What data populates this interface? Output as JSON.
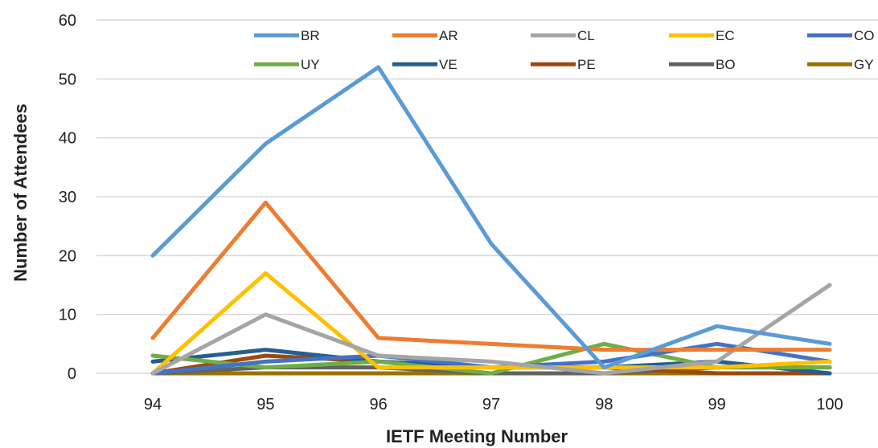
{
  "chart_data": {
    "type": "line",
    "title": "",
    "xlabel": "IETF Meeting Number",
    "ylabel": "Number of Attendees",
    "x": [
      "94",
      "95",
      "96",
      "97",
      "98",
      "99",
      "100"
    ],
    "ylim": [
      0,
      60
    ],
    "yticks": [
      "0",
      "10",
      "20",
      "30",
      "40",
      "50",
      "60"
    ],
    "grid": true,
    "legend_position": "top",
    "series": [
      {
        "name": "BR",
        "color": "#5b9bd5",
        "values": [
          20,
          39,
          52,
          22,
          1,
          8,
          5
        ]
      },
      {
        "name": "AR",
        "color": "#ed7d31",
        "values": [
          6,
          29,
          6,
          5,
          4,
          4,
          4
        ]
      },
      {
        "name": "CL",
        "color": "#a5a5a5",
        "values": [
          0,
          10,
          3,
          2,
          0,
          2,
          15
        ]
      },
      {
        "name": "EC",
        "color": "#ffc000",
        "values": [
          0,
          17,
          1,
          1,
          1,
          1,
          2
        ]
      },
      {
        "name": "CO",
        "color": "#4472c4",
        "values": [
          0,
          2,
          3,
          1,
          2,
          5,
          2
        ]
      },
      {
        "name": "UY",
        "color": "#70ad47",
        "values": [
          3,
          1,
          2,
          0,
          5,
          1,
          1
        ]
      },
      {
        "name": "VE",
        "color": "#255e91",
        "values": [
          2,
          4,
          2,
          1,
          1,
          2,
          0
        ]
      },
      {
        "name": "PE",
        "color": "#9e480e",
        "values": [
          0,
          3,
          2,
          1,
          1,
          0,
          0
        ]
      },
      {
        "name": "BO",
        "color": "#636363",
        "values": [
          0,
          1,
          1,
          0,
          0,
          1,
          1
        ]
      },
      {
        "name": "GY",
        "color": "#997300",
        "values": [
          0,
          0,
          0,
          0,
          0,
          0,
          0
        ]
      }
    ]
  }
}
